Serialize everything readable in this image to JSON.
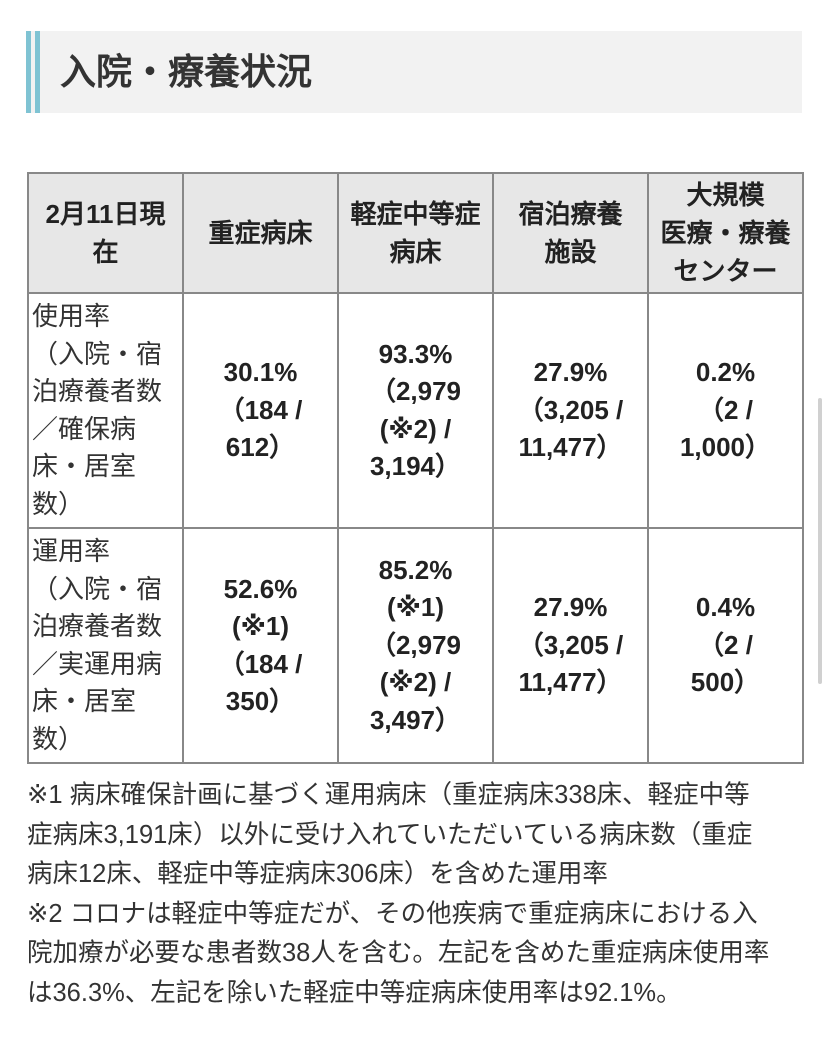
{
  "theme": {
    "accent": "#7fc3d3",
    "heading_background": "#f2f2f2",
    "table_header_background": "#e7e7e7",
    "border": "#888888"
  },
  "heading": {
    "title": "入院・療養状況"
  },
  "table": {
    "header": [
      [
        "2月11日現",
        "在"
      ],
      [
        "重症病床"
      ],
      [
        "軽症中等症",
        "病床"
      ],
      [
        "宿泊療養",
        "施設"
      ],
      [
        "大規模",
        "医療・療養",
        "センター"
      ]
    ],
    "rows": [
      {
        "label": [
          "使用率",
          "（入院・宿",
          "泊療養者数",
          "／確保病",
          "床・居室",
          "数）"
        ],
        "cells": [
          [
            "30.1%",
            "（184 /",
            "612）"
          ],
          [
            "93.3%",
            "（2,979",
            "(※2) /",
            "3,194）"
          ],
          [
            "27.9%",
            "（3,205 /",
            "11,477）"
          ],
          [
            "0.2%",
            "（2 /",
            "1,000）"
          ]
        ]
      },
      {
        "label": [
          "運用率",
          "（入院・宿",
          "泊療養者数",
          "／実運用病",
          "床・居室",
          "数）"
        ],
        "cells": [
          [
            "52.6%",
            "(※1)",
            "（184 /",
            "350）"
          ],
          [
            "85.2%",
            "(※1)",
            "（2,979",
            "(※2) /",
            "3,497）"
          ],
          [
            "27.9%",
            "（3,205 /",
            "11,477）"
          ],
          [
            "0.4%",
            "（2 /",
            "500）"
          ]
        ]
      }
    ]
  },
  "notes": [
    [
      "※1 病床確保計画に基づく運用病床（重症病床338床、軽症中等",
      "症病床3,191床）以外に受け入れていただいている病床数（重症",
      "病床12床、軽症中等症病床306床）を含めた運用率"
    ],
    [
      "※2 コロナは軽症中等症だが、その他疾病で重症病床における入",
      "院加療が必要な患者数38人を含む。左記を含めた重症病床使用率",
      "は36.3%、左記を除いた軽症中等症病床使用率は92.1%。"
    ]
  ]
}
